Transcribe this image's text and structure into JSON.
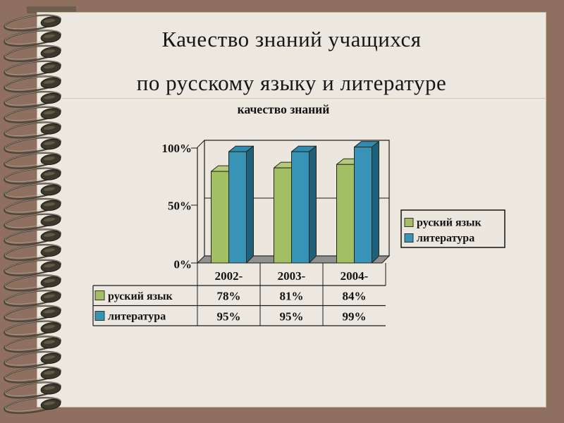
{
  "slide": {
    "title_line1": "Качество знаний учащихся",
    "title_line2": "по русскому языку и литературе"
  },
  "chart": {
    "title": "качество знаний",
    "y_axis": {
      "ticks": [
        "100%",
        "50%",
        "0%"
      ]
    },
    "x_axis": {
      "categories": [
        "2002-",
        "2003-",
        "2004-"
      ]
    },
    "legend": {
      "items": [
        {
          "label": "руский язык",
          "color": "#a3bf63"
        },
        {
          "label": "литература",
          "color": "#3794b7"
        }
      ]
    },
    "table": {
      "rows": [
        {
          "label": "руский язык",
          "color": "#a3bf63",
          "cells": [
            "78%",
            "81%",
            "84%"
          ]
        },
        {
          "label": "литература",
          "color": "#3794b7",
          "cells": [
            "95%",
            "95%",
            "99%"
          ]
        }
      ]
    }
  },
  "chart_data": {
    "type": "bar",
    "style": "3d-clustered-column",
    "title": "качество знаний",
    "categories": [
      "2002-",
      "2003-",
      "2004-"
    ],
    "series": [
      {
        "name": "руский язык",
        "values": [
          78,
          81,
          84
        ],
        "color": "#a3bf63",
        "color_top": "#b4cb7c",
        "color_side": "#7e9a47"
      },
      {
        "name": "литература",
        "values": [
          95,
          95,
          99
        ],
        "color": "#3794b7",
        "color_top": "#2f8cb0",
        "color_side": "#1f607a"
      }
    ],
    "ylim": [
      0,
      100
    ],
    "y_tick_labels": [
      "0%",
      "50%",
      "100%"
    ],
    "grid": true,
    "legend_position": "right",
    "data_table_shown": true,
    "wall_color": "#ebe7df",
    "floor_color": "#909090"
  }
}
